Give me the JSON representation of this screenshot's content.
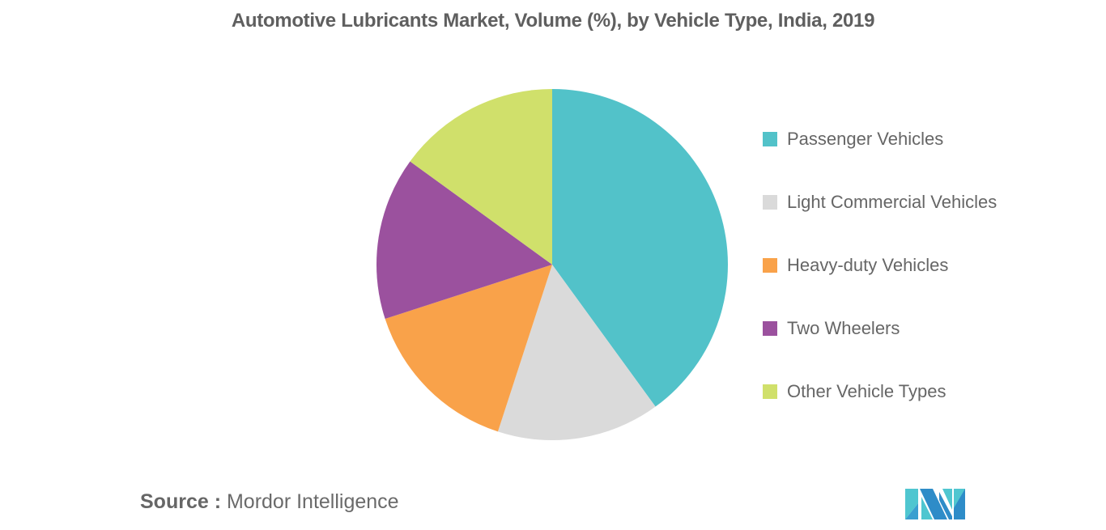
{
  "header": {
    "title": "Automotive Lubricants Market, Volume (%), by Vehicle Type, India, 2019"
  },
  "legend": {
    "items": [
      {
        "label": "Passenger Vehicles",
        "color": "#52C2C9"
      },
      {
        "label": "Light Commercial Vehicles",
        "color": "#DADADA"
      },
      {
        "label": "Heavy-duty Vehicles",
        "color": "#F9A24A"
      },
      {
        "label": "Two Wheelers",
        "color": "#9B519E"
      },
      {
        "label": "Other Vehicle Types",
        "color": "#D0E06B"
      }
    ]
  },
  "footer": {
    "source_key": "Source :",
    "source_value": " Mordor Intelligence",
    "logo_icon": "mordor-intelligence-logo-icon"
  },
  "chart_data": {
    "type": "pie",
    "title": "Automotive Lubricants Market, Volume (%), by Vehicle Type, India, 2019",
    "categories": [
      "Passenger Vehicles",
      "Light Commercial Vehicles",
      "Heavy-duty Vehicles",
      "Two Wheelers",
      "Other Vehicle Types"
    ],
    "values": [
      40,
      15,
      15,
      15,
      15
    ],
    "colors": [
      "#52C2C9",
      "#DADADA",
      "#F9A24A",
      "#9B519E",
      "#D0E06B"
    ],
    "start_angle": "12 o'clock, clockwise",
    "legend_position": "right",
    "data_labels": false,
    "unit": "%"
  }
}
